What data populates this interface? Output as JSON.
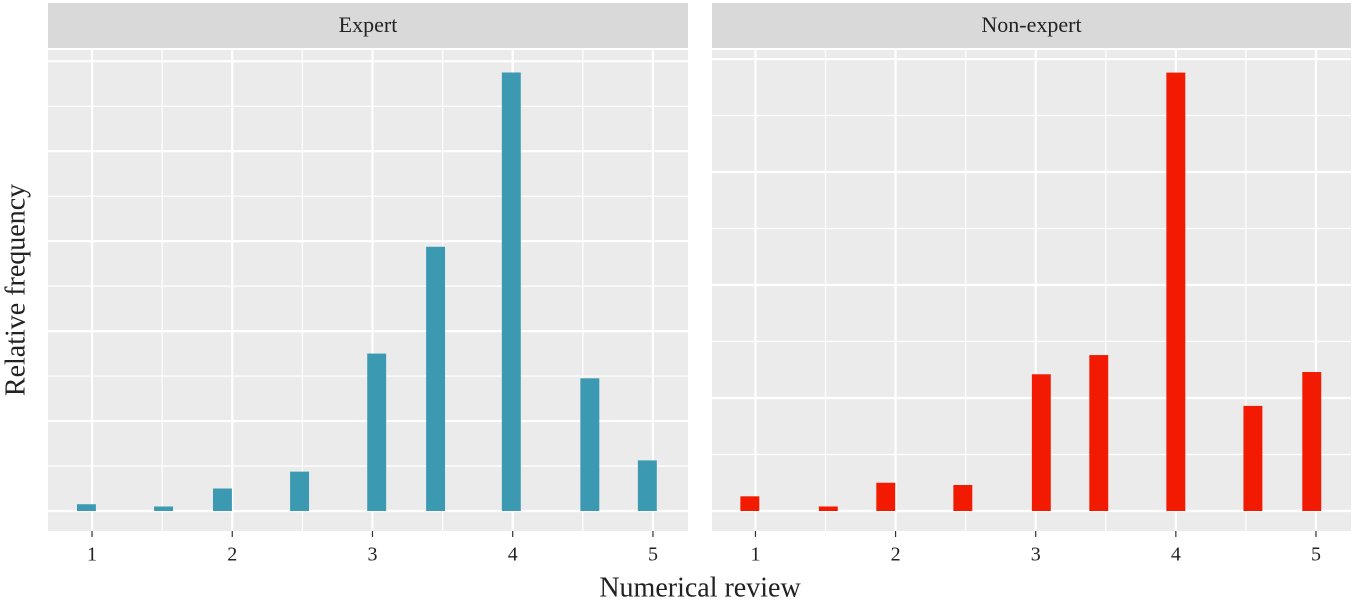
{
  "x_label": "Numerical review",
  "y_label": "Relative frequency",
  "chart_data": [
    {
      "type": "bar",
      "title": "Expert",
      "color": "#3b9ab2",
      "x": [
        0.96,
        1.51,
        1.93,
        2.48,
        3.03,
        3.45,
        3.99,
        4.55,
        4.96
      ],
      "values": [
        0.006,
        0.004,
        0.02,
        0.035,
        0.14,
        0.235,
        0.39,
        0.118,
        0.045
      ],
      "bar_width": 0.135,
      "xlim": [
        0.686,
        5.25
      ],
      "xticks": [
        1,
        2,
        3,
        4,
        5
      ],
      "x_grid": [
        1,
        1.5,
        2,
        2.5,
        3,
        3.5,
        4,
        4.5,
        5
      ],
      "ylim": [
        -0.0178,
        0.41
      ],
      "y_grid": [
        0,
        0.04,
        0.08,
        0.12,
        0.16,
        0.2,
        0.24,
        0.28,
        0.32,
        0.36,
        0.4
      ]
    },
    {
      "type": "bar",
      "title": "Non-expert",
      "color": "#f21a00",
      "x": [
        0.96,
        1.52,
        1.93,
        2.48,
        3.04,
        3.45,
        4.0,
        4.55,
        4.97
      ],
      "values": [
        0.013,
        0.004,
        0.025,
        0.023,
        0.121,
        0.138,
        0.388,
        0.093,
        0.123
      ],
      "bar_width": 0.135,
      "xlim": [
        0.69,
        5.25
      ],
      "xticks": [
        1,
        2,
        3,
        4,
        5
      ],
      "x_grid": [
        1,
        1.5,
        2,
        2.5,
        3,
        3.5,
        4,
        4.5,
        5
      ],
      "ylim": [
        -0.0177,
        0.408
      ],
      "y_grid": [
        0,
        0.05,
        0.1,
        0.15,
        0.2,
        0.25,
        0.3,
        0.35,
        0.4
      ]
    }
  ]
}
